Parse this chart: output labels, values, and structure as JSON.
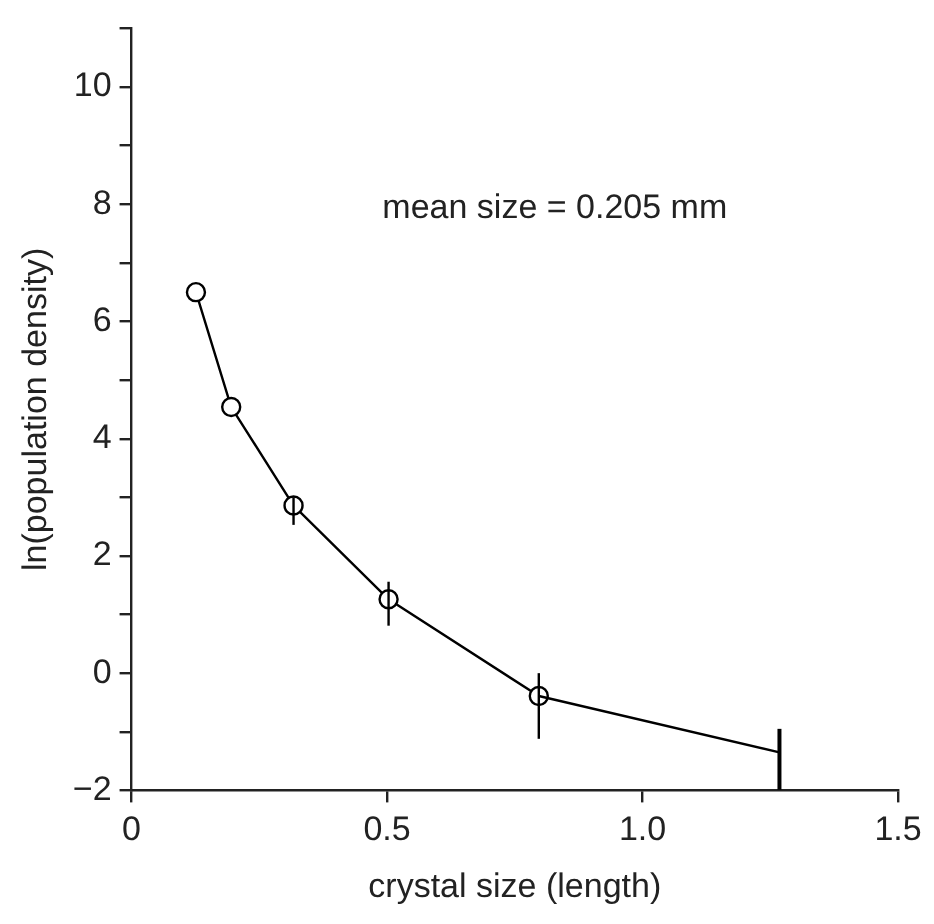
{
  "chart_data": {
    "type": "line",
    "xlabel": "crystal size (length)",
    "ylabel": "ln(population density)",
    "annotations": [
      "mean size = 0.205 mm"
    ],
    "xlim": [
      0,
      1.5
    ],
    "xticks": [
      0,
      {
        "value": 0.5,
        "label": "0.5"
      },
      {
        "value": 1,
        "label": "1.0"
      },
      {
        "value": 1.5,
        "label": "1.5"
      }
    ],
    "ylim": [
      -2,
      11
    ],
    "yticks": [
      {
        "value": -2,
        "label": "−2"
      },
      {
        "value": -1,
        "label": null
      },
      0,
      {
        "value": 1,
        "label": null
      },
      2,
      {
        "value": 3,
        "label": null
      },
      4,
      {
        "value": 5,
        "label": null
      },
      6,
      {
        "value": 7,
        "label": null
      },
      8,
      {
        "value": 9,
        "label": null
      },
      10,
      {
        "value": 11,
        "label": null
      }
    ],
    "grid": false,
    "legend": false,
    "series": [
      {
        "color": "#000000",
        "marker": "circle",
        "x": [
          0.126,
          0.195,
          0.317,
          0.503,
          0.797
        ],
        "values": [
          6.5,
          4.54,
          2.86,
          1.26,
          -0.39
        ],
        "errors": [
          null,
          null,
          [
            2.53,
            3.0
          ],
          [
            0.81,
            1.56
          ],
          [
            -1.12,
            0.0
          ]
        ]
      },
      {
        "color": "#000000",
        "marker": "none",
        "x": [
          0.797,
          1.268
        ],
        "values": [
          -0.39,
          -1.35
        ],
        "errors": [
          null,
          [
            -1.99,
            -0.95
          ]
        ]
      }
    ]
  }
}
